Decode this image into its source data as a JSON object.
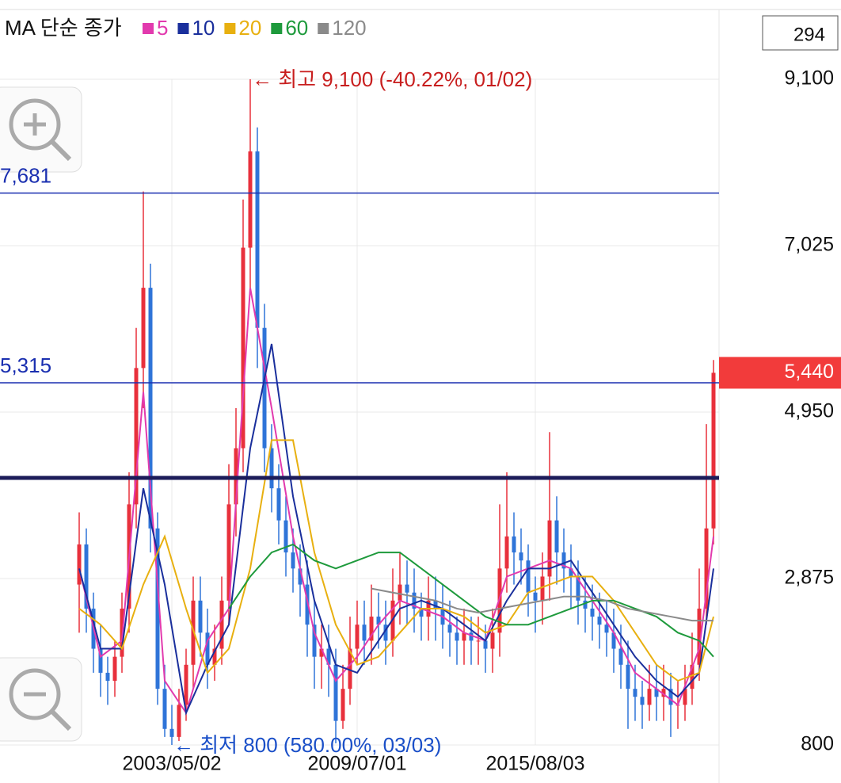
{
  "chart_data": {
    "type": "candlestick",
    "legend_title": "MA 단순 종가",
    "count_box": "294",
    "categories": [
      null,
      null,
      null,
      null,
      null,
      null,
      null,
      null,
      null,
      null,
      null,
      null,
      null,
      "2003/05/02",
      null,
      null,
      null,
      null,
      null,
      null,
      null,
      null,
      null,
      null,
      null,
      null,
      null,
      null,
      null,
      null,
      null,
      null,
      null,
      null,
      null,
      null,
      null,
      null,
      null,
      "2009/07/01",
      null,
      null,
      null,
      null,
      null,
      null,
      null,
      null,
      null,
      null,
      null,
      null,
      null,
      null,
      null,
      null,
      null,
      null,
      null,
      null,
      null,
      null,
      null,
      null,
      "2015/08/03",
      null,
      null,
      null,
      null,
      null,
      null,
      null,
      null,
      null,
      null,
      null,
      null,
      null,
      null,
      null,
      null,
      null,
      null,
      null,
      null,
      null,
      null,
      null,
      null,
      null
    ],
    "open": [
      2800,
      3300,
      2500,
      2000,
      1700,
      1600,
      1900,
      2500,
      3800,
      5500,
      6500,
      3500,
      1500,
      1000,
      900,
      1300,
      1800,
      2600,
      2200,
      1800,
      2000,
      2600,
      3800,
      4500,
      7000,
      8200,
      6000,
      4500,
      4000,
      3600,
      3200,
      3000,
      2800,
      2300,
      1900,
      2000,
      1800,
      1100,
      1500,
      2000,
      2300,
      2100,
      2400,
      2300,
      2100,
      2600,
      2800,
      2700,
      2500,
      2400,
      2600,
      2500,
      2300,
      2200,
      2100,
      2200,
      2100,
      2100,
      2000,
      2200,
      3000,
      3400,
      3200,
      3100,
      2700,
      2600,
      2900,
      3600,
      3200,
      3000,
      2900,
      2600,
      2500,
      2400,
      2300,
      2200,
      2000,
      1800,
      1500,
      1400,
      1300,
      1500,
      1400,
      1500,
      1300,
      1300,
      1500,
      1800,
      2500,
      3500
    ],
    "high": [
      3700,
      3500,
      2700,
      2300,
      1900,
      2100,
      2700,
      4200,
      6000,
      7700,
      6800,
      3700,
      1800,
      1300,
      1500,
      2000,
      2900,
      2900,
      2500,
      2300,
      2900,
      4300,
      5000,
      7600,
      9100,
      8500,
      6300,
      4800,
      4300,
      3900,
      3500,
      3300,
      3100,
      2600,
      2300,
      2300,
      2000,
      1800,
      2400,
      2600,
      2600,
      2800,
      2700,
      2600,
      3000,
      3200,
      3100,
      3000,
      2700,
      2900,
      2900,
      2800,
      2600,
      2400,
      2500,
      2400,
      2400,
      2300,
      2500,
      3800,
      4200,
      3700,
      3500,
      3300,
      2900,
      3200,
      4700,
      3900,
      3500,
      3300,
      3100,
      2900,
      2800,
      2700,
      2600,
      2500,
      2300,
      2100,
      1800,
      1600,
      1800,
      1800,
      1800,
      1700,
      1600,
      1800,
      2200,
      3000,
      4800,
      5600
    ],
    "low": [
      2200,
      2200,
      1700,
      1400,
      1300,
      1400,
      1700,
      2200,
      3500,
      5000,
      3200,
      1300,
      900,
      800,
      850,
      1100,
      1500,
      1900,
      1500,
      1600,
      1800,
      2300,
      3400,
      4200,
      6500,
      5500,
      4200,
      3700,
      3300,
      2900,
      2700,
      2400,
      1900,
      1500,
      1500,
      1400,
      820,
      1000,
      1300,
      1800,
      1800,
      1800,
      2000,
      1800,
      1900,
      2300,
      2300,
      2200,
      2100,
      2100,
      2100,
      2000,
      1900,
      1800,
      1800,
      1800,
      1800,
      1700,
      1700,
      1900,
      2700,
      2800,
      2800,
      2400,
      2200,
      2300,
      2600,
      2800,
      2700,
      2500,
      2300,
      2200,
      2100,
      2000,
      1900,
      1700,
      1500,
      1000,
      1100,
      1000,
      1100,
      1100,
      1100,
      900,
      1000,
      1100,
      1300,
      1600,
      2300,
      3300
    ],
    "close": [
      3300,
      2500,
      2000,
      1700,
      1600,
      1900,
      2500,
      3800,
      5500,
      6500,
      3500,
      1500,
      1000,
      900,
      1300,
      1800,
      2600,
      2200,
      1800,
      2000,
      2600,
      3800,
      4500,
      7000,
      8200,
      6000,
      4500,
      4000,
      3600,
      3200,
      3000,
      2800,
      2300,
      1900,
      2000,
      1800,
      1100,
      1500,
      2000,
      2300,
      2100,
      2400,
      2300,
      2100,
      2600,
      2800,
      2700,
      2500,
      2400,
      2600,
      2500,
      2300,
      2200,
      2100,
      2200,
      2100,
      2100,
      2000,
      2200,
      3000,
      3400,
      3200,
      3100,
      2700,
      2600,
      2900,
      3600,
      3200,
      3000,
      2900,
      2600,
      2500,
      2400,
      2300,
      2200,
      2000,
      1800,
      1500,
      1400,
      1300,
      1500,
      1400,
      1500,
      1300,
      1300,
      1500,
      1800,
      2500,
      3500,
      5440
    ],
    "up_color": "#e8303c",
    "down_color": "#2f74d8",
    "series": [
      {
        "name": "5",
        "color": "#e23aae",
        "x": [
          0,
          3,
          6,
          9,
          12,
          15,
          18,
          21,
          24,
          27,
          30,
          33,
          36,
          39,
          42,
          45,
          48,
          51,
          54,
          57,
          60,
          63,
          66,
          69,
          72,
          75,
          78,
          81,
          84,
          87,
          89
        ],
        "values": [
          3000,
          1900,
          2100,
          5200,
          1600,
          1200,
          2100,
          2500,
          6500,
          5000,
          3400,
          2200,
          1600,
          1900,
          2300,
          2600,
          2500,
          2400,
          2200,
          2100,
          2900,
          3000,
          3100,
          3000,
          2600,
          2200,
          1700,
          1500,
          1300,
          2000,
          3400
        ]
      },
      {
        "name": "10",
        "color": "#1a2f9c",
        "x": [
          0,
          3,
          6,
          9,
          12,
          15,
          18,
          21,
          24,
          27,
          30,
          33,
          36,
          39,
          42,
          45,
          48,
          51,
          54,
          57,
          60,
          63,
          66,
          69,
          72,
          75,
          78,
          81,
          84,
          87,
          89
        ],
        "values": [
          3000,
          2000,
          2000,
          4000,
          2800,
          1200,
          1800,
          2300,
          4500,
          5800,
          3900,
          2600,
          1800,
          1700,
          2100,
          2500,
          2600,
          2500,
          2300,
          2100,
          2600,
          3000,
          3000,
          3100,
          2700,
          2300,
          1900,
          1600,
          1400,
          1700,
          3000
        ]
      },
      {
        "name": "20",
        "color": "#e8b010",
        "x": [
          0,
          3,
          6,
          9,
          12,
          15,
          18,
          21,
          24,
          27,
          30,
          33,
          36,
          39,
          42,
          45,
          48,
          51,
          54,
          57,
          60,
          63,
          66,
          69,
          72,
          75,
          78,
          81,
          84,
          87,
          89
        ],
        "values": [
          2500,
          2300,
          2000,
          2800,
          3400,
          2500,
          1700,
          2000,
          3000,
          4600,
          4600,
          3200,
          2300,
          1800,
          1900,
          2200,
          2500,
          2500,
          2400,
          2200,
          2300,
          2700,
          2800,
          2900,
          2900,
          2600,
          2200,
          1800,
          1600,
          1700,
          2400
        ]
      },
      {
        "name": "60",
        "color": "#1e9a3c",
        "x": [
          21,
          24,
          27,
          30,
          33,
          36,
          39,
          42,
          45,
          48,
          51,
          54,
          57,
          60,
          63,
          66,
          69,
          72,
          75,
          78,
          81,
          84,
          87,
          89
        ],
        "values": [
          2500,
          2900,
          3200,
          3300,
          3100,
          3000,
          3100,
          3200,
          3200,
          3000,
          2800,
          2600,
          2400,
          2300,
          2300,
          2400,
          2500,
          2600,
          2600,
          2500,
          2400,
          2200,
          2100,
          1900
        ]
      },
      {
        "name": "120",
        "color": "#8a8a8a",
        "x": [
          41,
          44,
          47,
          50,
          53,
          56,
          59,
          62,
          65,
          68,
          71,
          74,
          77,
          80,
          83,
          86,
          89
        ],
        "values": [
          2750,
          2700,
          2650,
          2600,
          2500,
          2450,
          2500,
          2550,
          2600,
          2650,
          2650,
          2600,
          2500,
          2450,
          2400,
          2350,
          2350
        ]
      }
    ],
    "ylim": [
      800,
      9100
    ],
    "yticks": [
      800,
      {
        "value": 2875,
        "label": "2,875"
      },
      {
        "value": 4950,
        "label": "4,950"
      },
      {
        "value": 7025,
        "label": "7,025"
      },
      {
        "value": 9100,
        "label": "9,100"
      }
    ],
    "grid": true,
    "price_lines": [
      {
        "value": 7681,
        "label": "7,681"
      },
      {
        "value": 5315,
        "label": "5,315"
      }
    ],
    "avg_line": 4130,
    "current": {
      "value": 5440,
      "label": "5,440"
    },
    "annotations": [
      {
        "text": "← 최고 9,100 (-40.22%, 01/02)",
        "value": 9100,
        "x": 24,
        "color": "#c81e1e"
      },
      {
        "text": "← 최저 800 (580.00%, 03/03)",
        "value": 800,
        "x": 13,
        "color": "#1a4fc8"
      }
    ]
  }
}
